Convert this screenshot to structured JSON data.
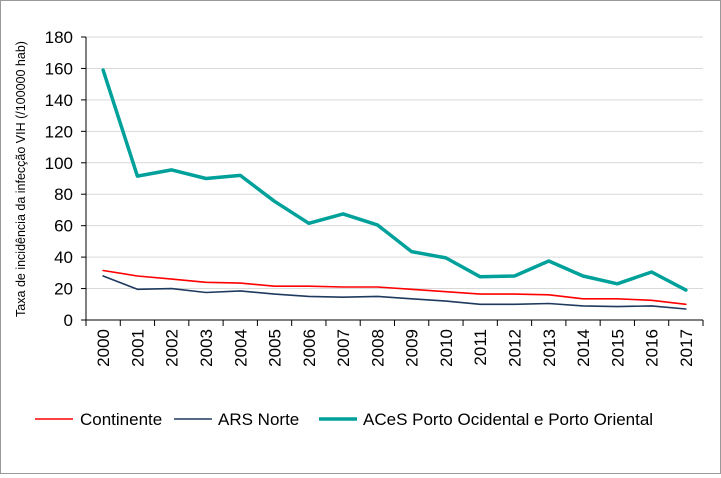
{
  "chart_data": {
    "type": "line",
    "title": "",
    "xlabel": "",
    "ylabel": "Taxa de incidência da infecção VIH  (/100000 hab)",
    "ylim": [
      0,
      180
    ],
    "yticks": [
      0,
      20,
      40,
      60,
      80,
      100,
      120,
      140,
      160,
      180
    ],
    "grid": true,
    "legend_position": "bottom",
    "x": [
      "2000",
      "2001",
      "2002",
      "2003",
      "2004",
      "2005",
      "2006",
      "2007",
      "2008",
      "2009",
      "2010",
      "2011",
      "2012",
      "2013",
      "2014",
      "2015",
      "2016",
      "2017"
    ],
    "series": [
      {
        "name": "Continente",
        "color": "#ff0000",
        "values": [
          31.5,
          28,
          26,
          24,
          23.5,
          21.5,
          21.5,
          21,
          21,
          19.5,
          18,
          16.5,
          16.5,
          16,
          13.5,
          13.5,
          12.5,
          10
        ]
      },
      {
        "name": "ARS Norte",
        "color": "#1f3a5f",
        "values": [
          28,
          19.5,
          20,
          17.5,
          18.5,
          16.5,
          15,
          14.5,
          15,
          13.5,
          12,
          10,
          10,
          10.5,
          9,
          8.5,
          9,
          7
        ]
      },
      {
        "name": "ACeS Porto Ocidental e Porto Oriental",
        "color": "#00a19a",
        "values": [
          159,
          91.5,
          95.5,
          90,
          92,
          75.5,
          61.5,
          67.5,
          60.5,
          43.5,
          39.5,
          27.5,
          28,
          37.5,
          28,
          23,
          30.5,
          19
        ]
      }
    ]
  }
}
